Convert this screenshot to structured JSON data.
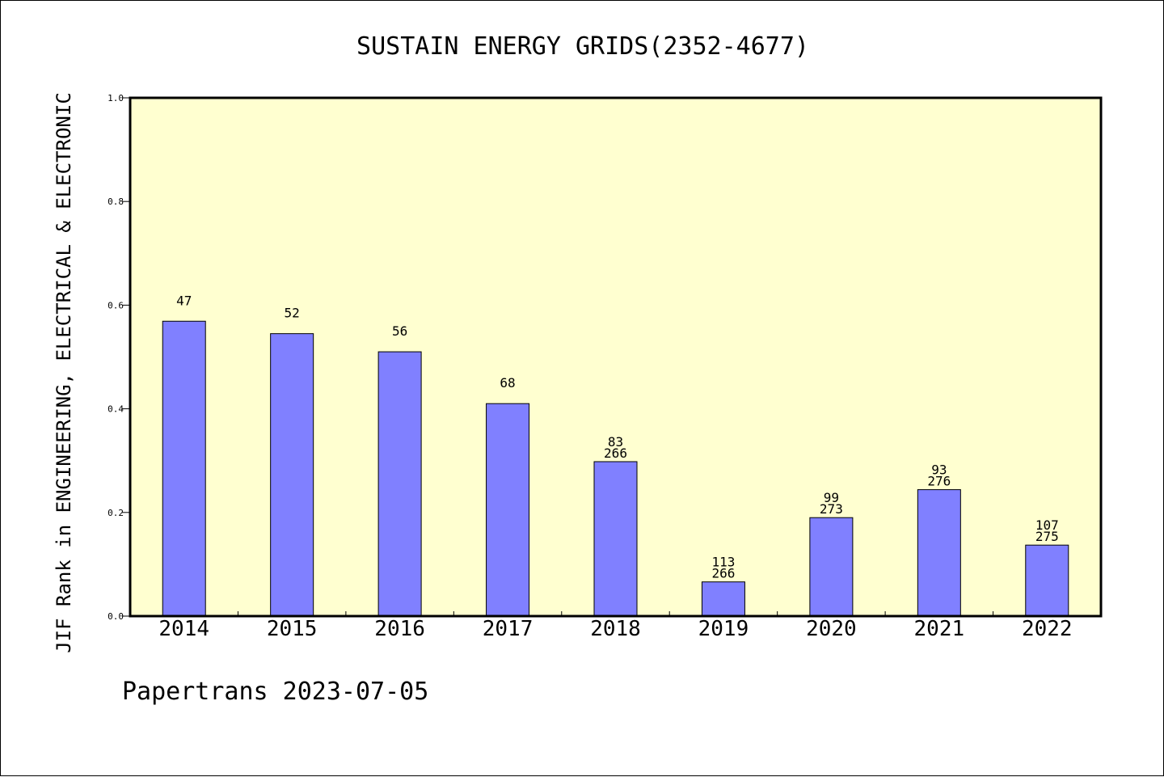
{
  "chart_data": {
    "type": "bar",
    "title": "SUSTAIN ENERGY GRIDS(2352-4677)",
    "ylabel": "JIF Rank in ENGINEERING, ELECTRICAL & ELECTRONIC",
    "xlabel": "",
    "ylim": [
      0,
      1.0
    ],
    "yticks": [
      "0.0",
      "0.2",
      "0.4",
      "0.6",
      "0.8",
      "1.0"
    ],
    "categories": [
      "2014",
      "2015",
      "2016",
      "2017",
      "2018",
      "2019",
      "2020",
      "2021",
      "2022"
    ],
    "values": [
      0.569,
      0.545,
      0.51,
      0.41,
      0.298,
      0.066,
      0.19,
      0.244,
      0.137
    ],
    "rank_labels": [
      "47",
      "52",
      "56",
      "68",
      "83",
      "113",
      "99",
      "93",
      "107"
    ],
    "total_labels": [
      "",
      "",
      "",
      "",
      "266",
      "266",
      "273",
      "276",
      "275"
    ],
    "grid": false,
    "legend": "none",
    "colors": {
      "bar_fill": "#8080ff",
      "plot_background": "#ffffd0",
      "axis": "#000000"
    }
  },
  "footer": {
    "text": "Papertrans 2023-07-05"
  }
}
